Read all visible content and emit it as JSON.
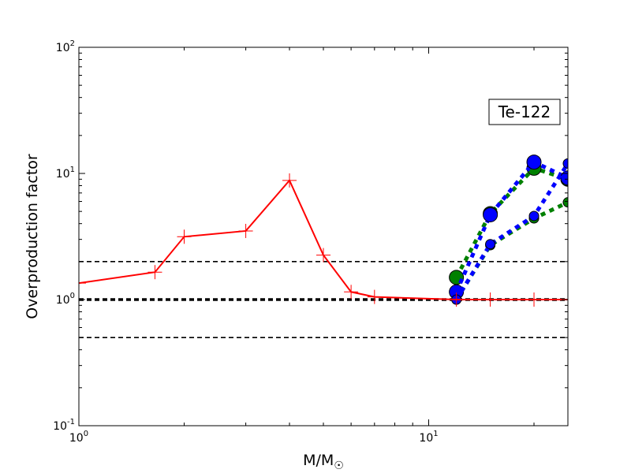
{
  "chart_data": {
    "type": "line",
    "xscale": "log",
    "yscale": "log",
    "xlim": [
      1,
      25
    ],
    "ylim": [
      0.1,
      100
    ],
    "xlabel": "M/M",
    "xlabel_sub": "☉",
    "ylabel": "Overproduction factor",
    "x_ticks": [
      {
        "value": 1,
        "base": "10",
        "exp": "0"
      },
      {
        "value": 10,
        "base": "10",
        "exp": "1"
      }
    ],
    "y_ticks": [
      {
        "value": 0.1,
        "base": "10",
        "exp": "-1"
      },
      {
        "value": 1,
        "base": "10",
        "exp": "0"
      },
      {
        "value": 10,
        "base": "10",
        "exp": "1"
      },
      {
        "value": 100,
        "base": "10",
        "exp": "2"
      }
    ],
    "annotation": "Te-122",
    "reference_lines": [
      {
        "y": 2.0,
        "style": "dashed",
        "color": "#000000",
        "width": 1.6
      },
      {
        "y": 1.0,
        "style": "dashed",
        "color": "#000000",
        "width": 3.5
      },
      {
        "y": 0.5,
        "style": "dashed",
        "color": "#000000",
        "width": 1.6
      }
    ],
    "series": [
      {
        "color": "#ff0000",
        "line": "solid",
        "marker": "plus",
        "points": [
          [
            1.0,
            1.35
          ],
          [
            1.65,
            1.65
          ],
          [
            2.0,
            3.15
          ],
          [
            3.0,
            3.5
          ],
          [
            4.0,
            8.8
          ],
          [
            5.0,
            2.25
          ],
          [
            6.0,
            1.15
          ],
          [
            7.0,
            1.05
          ],
          [
            12.0,
            1.0
          ],
          [
            15.0,
            1.0
          ],
          [
            20.0,
            1.0
          ],
          [
            25.0,
            1.0
          ]
        ]
      },
      {
        "color": "#008000",
        "line": "dotted",
        "marker": "circle-large",
        "points": [
          [
            12.0,
            1.5
          ],
          [
            15.0,
            4.8
          ],
          [
            20.0,
            11.0
          ],
          [
            25.0,
            9.0
          ]
        ]
      },
      {
        "color": "#008000",
        "line": "dotted",
        "marker": "circle-small",
        "points": [
          [
            12.0,
            1.0
          ],
          [
            15.0,
            2.7
          ],
          [
            20.0,
            4.4
          ],
          [
            25.0,
            5.9
          ]
        ]
      },
      {
        "color": "#0000ff",
        "line": "dotted",
        "marker": "circle-large",
        "points": [
          [
            12.0,
            1.15
          ],
          [
            15.0,
            4.7
          ],
          [
            20.0,
            12.3
          ],
          [
            25.0,
            9.2
          ]
        ]
      },
      {
        "color": "#0000ff",
        "line": "dotted",
        "marker": "circle-small",
        "points": [
          [
            12.0,
            1.0
          ],
          [
            15.0,
            2.75
          ],
          [
            20.0,
            4.6
          ],
          [
            25.0,
            12.0
          ]
        ]
      }
    ]
  }
}
